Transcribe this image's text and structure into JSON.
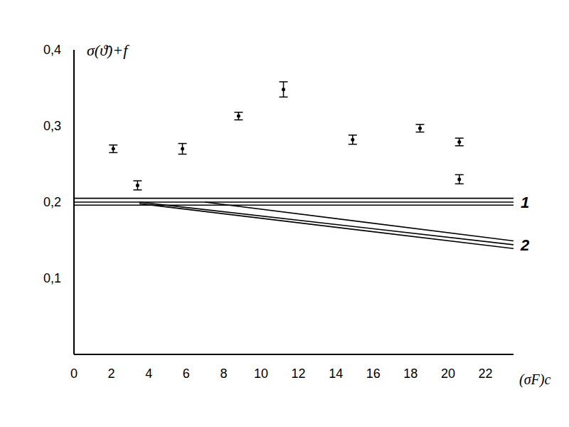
{
  "chart_data": {
    "type": "scatter",
    "x_label": "(σF)c",
    "y_label": "σ(ϑ̄)+f",
    "xlim": [
      0,
      23.5
    ],
    "xticks": [
      0,
      2,
      4,
      6,
      8,
      10,
      12,
      14,
      16,
      18,
      20,
      22
    ],
    "ylim": [
      0,
      0.4
    ],
    "yticks": [
      {
        "value": 0.1,
        "label": "0,1"
      },
      {
        "value": 0.2,
        "label": "0,2"
      },
      {
        "value": 0.3,
        "label": "0,3"
      },
      {
        "value": 0.4,
        "label": "0,4"
      }
    ],
    "grid": false,
    "series": [
      {
        "type": "scatter",
        "color": "#000000",
        "marker": "point",
        "x": [
          2.1,
          3.4,
          5.8,
          8.8,
          11.2,
          14.9,
          18.5,
          20.6,
          20.6
        ],
        "values": [
          0.27,
          0.222,
          0.27,
          0.313,
          0.348,
          0.282,
          0.297,
          0.279,
          0.23
        ],
        "error": [
          0.005,
          0.006,
          0.007,
          0.005,
          0.01,
          0.006,
          0.005,
          0.005,
          0.006
        ]
      },
      {
        "name": "1",
        "type": "line",
        "color": "#000000",
        "lines": [
          {
            "x": [
              0,
              23.5
            ],
            "values": [
              0.205,
              0.205
            ]
          },
          {
            "x": [
              0,
              23.5
            ],
            "values": [
              0.2,
              0.2
            ]
          },
          {
            "x": [
              0,
              23.5
            ],
            "values": [
              0.196,
              0.196
            ]
          }
        ]
      },
      {
        "name": "2",
        "type": "line",
        "color": "#000000",
        "lines": [
          {
            "x": [
              7,
              23.5
            ],
            "values": [
              0.2,
              0.149
            ]
          },
          {
            "x": [
              3.5,
              23.5
            ],
            "values": [
              0.2,
              0.144
            ]
          },
          {
            "x": [
              3.5,
              23.5
            ],
            "values": [
              0.198,
              0.139
            ]
          }
        ]
      }
    ]
  }
}
